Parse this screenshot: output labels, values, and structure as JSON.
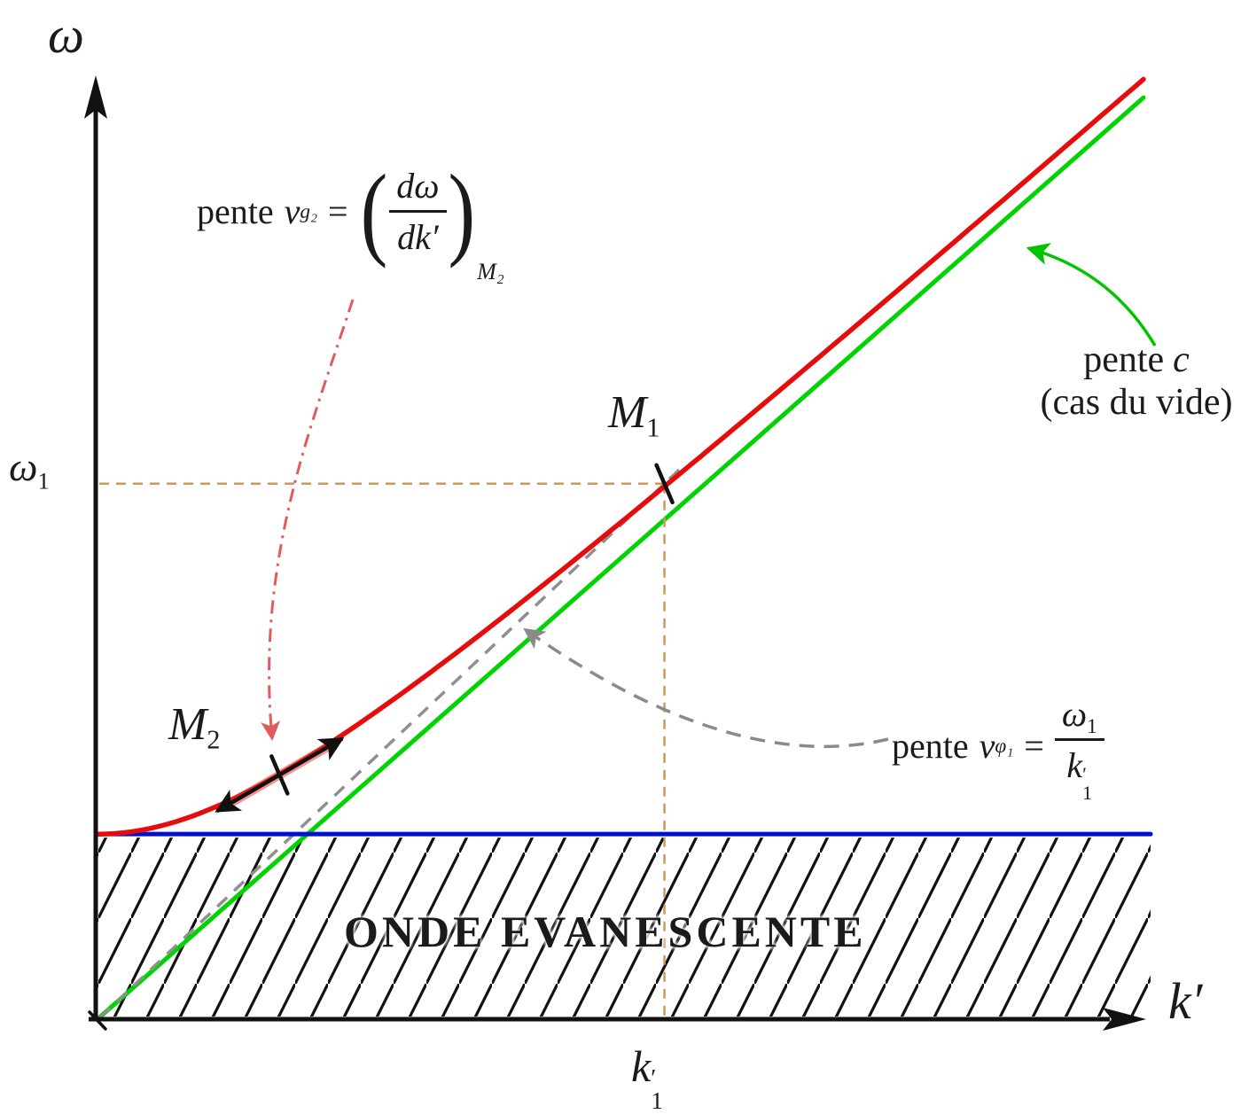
{
  "axes": {
    "y_label": "ω",
    "x_label": "k′",
    "omega1": {
      "base": "ω",
      "sub": "1"
    },
    "k1": {
      "base": "k",
      "prime": "′",
      "sub": "1"
    }
  },
  "points": {
    "m1": {
      "base": "M",
      "sub": "1"
    },
    "m2": {
      "base": "M",
      "sub": "2"
    }
  },
  "formulas": {
    "vg": {
      "prefix": "pente",
      "var": "v",
      "var_sub": "g₂",
      "equals": "=",
      "paren_open": "(",
      "paren_close": ")",
      "frac_num": "dω",
      "frac_den": "dk′",
      "sub_point": "M₂"
    },
    "vphi": {
      "prefix": "pente",
      "var": "v",
      "var_sub": "φ₁",
      "equals": "=",
      "num_base": "ω",
      "num_sub": "1",
      "den_base": "k",
      "den_prime": "′",
      "den_sub": "1"
    },
    "pente_c": {
      "prefix": "pente",
      "var": "c",
      "line2": "(cas du vide)"
    }
  },
  "region_label": "ONDE EVANESCENTE",
  "colors": {
    "dispersion_curve": "#e60c0c",
    "light_line": "#00d400",
    "cutoff_line": "#0011cc",
    "phase_line": "#8f8f8f",
    "coordinate_guides": "#c89a5e",
    "hatch": "#111111",
    "text": "#1b1b1b",
    "vg_arrow": "#e05c5c",
    "vphi_arrow": "#8a8a8a",
    "green_arrow": "#00c400",
    "group_velocity_highlight": "rgba(235,40,40,0.5)"
  },
  "chart_data": {
    "type": "line",
    "title": "",
    "xlabel": "k′",
    "ylabel": "ω",
    "x_range": [
      0,
      1
    ],
    "y_range": [
      0,
      1
    ],
    "numeric_ticks": false,
    "grid": false,
    "legend_position": "none",
    "series": [
      {
        "name": "dispersion curve ω(k′) = √(ωp² + c²k′²) (red)",
        "type": "curve",
        "color": "#e60c0c",
        "omega_p": 0.197,
        "c": 0.981
      },
      {
        "name": "pente c — cas du vide, ω = c·k′ (green)",
        "type": "line_through_origin",
        "color": "#00d400",
        "slope": 0.981
      },
      {
        "name": "cutoff ωp — limite onde évanescente (blue)",
        "type": "horizontal_line",
        "color": "#0011cc",
        "level": 0.197
      }
    ],
    "points": [
      {
        "name": "M₁",
        "k": 0.542,
        "omega": 0.57
      },
      {
        "name": "M₂",
        "k": 0.174,
        "omega": 0.26
      }
    ],
    "guides": [
      {
        "name": "phase-velocity chord origin→M₁, pente v_φ₁ = ω₁/k′₁",
        "style": "dashed",
        "color": "#8f8f8f"
      },
      {
        "name": "coordinate guides ω₁ and k′₁ for M₁",
        "style": "dashed",
        "color": "#c89a5e"
      }
    ],
    "regions": [
      {
        "name": "ONDE EVANESCENTE",
        "condition": "ω < ωp",
        "fill": "diagonal-hatch"
      }
    ],
    "annotations": [
      "pente v_g₂ = (dω/dk′)_M₂",
      "pente v_φ₁ = ω₁/k′₁",
      "pente c (cas du vide)",
      "M₁",
      "M₂",
      "ω₁",
      "k′₁",
      "ONDE EVANESCENTE"
    ]
  }
}
